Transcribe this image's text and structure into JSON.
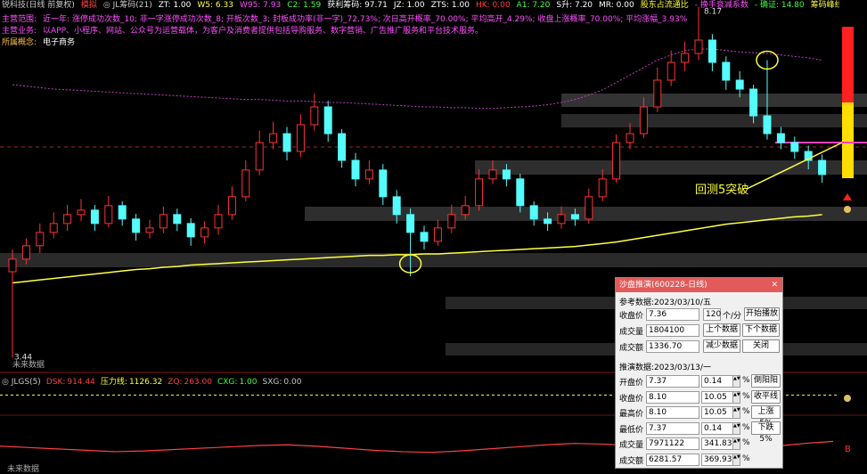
{
  "header": {
    "rows": [
      [
        {
          "text": "锐科技(日线 前复权)",
          "color": "#c8c8c8"
        },
        {
          "text": "模拟",
          "color": "#ff4040"
        },
        {
          "text": "◎ JL筹码(21)",
          "color": "#c8c8c8"
        },
        {
          "text": "ZT: 1.00",
          "color": "#ffffff"
        },
        {
          "text": "W5: 6.33",
          "color": "#ffff40"
        },
        {
          "text": "W95: 7.93",
          "color": "#ff50ff"
        },
        {
          "text": "C2: 1.59",
          "color": "#40ff40"
        },
        {
          "text": "获利筹码: 97.71",
          "color": "#ffffff"
        },
        {
          "text": "JZ: 1.00",
          "color": "#ffffff"
        },
        {
          "text": "ZTS: 1.00",
          "color": "#ffffff"
        },
        {
          "text": "HK: 0.00",
          "color": "#ff4040"
        },
        {
          "text": "A1: 7.20",
          "color": "#40ff40"
        },
        {
          "text": "S升: 7.20",
          "color": "#ffffff"
        },
        {
          "text": "MR: 0.00",
          "color": "#ffffff"
        },
        {
          "text": "股东占流通比",
          "color": "#ffff40"
        },
        {
          "text": "- 换手衰减系数",
          "color": "#ff50ff"
        },
        {
          "text": "- 确证: 14.80",
          "color": "#40ff40"
        },
        {
          "text": "筹码峰线: 7.51",
          "color": "#ffff40"
        },
        {
          "text": "平台突破: 1.00",
          "color": "#ffffff"
        }
      ],
      [
        {
          "text": "主营范围:",
          "color": "#ff50ff"
        },
        {
          "text": "近一年: 涨停成功次数_10; 非一字涨停成功次数_8; 开板次数_3; 封板成功率(非一字)_72.73%; 次日高开概率_70.00%; 平均高开_4.29%; 收盘上涨概率_70.00%; 平均涨幅_3.93%",
          "color": "#ff50ff"
        }
      ],
      [
        {
          "text": "主营业务:",
          "color": "#ff50ff"
        },
        {
          "text": "以APP、小程序、网站、公众号为运营载体，为客户及消费者提供包括导购服务、数字营销、广告推广服务和平台技术服务。",
          "color": "#ff50ff"
        }
      ],
      [
        {
          "text": "所属概念:",
          "color": "#ffc040"
        },
        {
          "text": "电子商务",
          "color": "#ffffff"
        }
      ]
    ]
  },
  "chart": {
    "type": "candlestick",
    "ylim": [
      3.4,
      8.2
    ],
    "up_color": "#ff3232",
    "down_color": "#54fcfc",
    "candles": [
      [
        4.6,
        4.9,
        3.44,
        4.77
      ],
      [
        4.77,
        5.05,
        4.7,
        4.95
      ],
      [
        4.95,
        5.25,
        4.85,
        5.13
      ],
      [
        5.13,
        5.4,
        5.05,
        5.25
      ],
      [
        5.25,
        5.5,
        5.15,
        5.37
      ],
      [
        5.37,
        5.58,
        5.28,
        5.43
      ],
      [
        5.43,
        5.5,
        5.15,
        5.25
      ],
      [
        5.25,
        5.62,
        5.2,
        5.49
      ],
      [
        5.49,
        5.55,
        5.22,
        5.31
      ],
      [
        5.31,
        5.38,
        5.02,
        5.13
      ],
      [
        5.13,
        5.3,
        5.05,
        5.19
      ],
      [
        5.19,
        5.48,
        5.12,
        5.37
      ],
      [
        5.37,
        5.45,
        5.15,
        5.25
      ],
      [
        5.25,
        5.32,
        4.95,
        5.07
      ],
      [
        5.07,
        5.28,
        4.98,
        5.19
      ],
      [
        5.19,
        5.5,
        5.1,
        5.37
      ],
      [
        5.37,
        5.75,
        5.3,
        5.61
      ],
      [
        5.61,
        6.1,
        5.55,
        5.97
      ],
      [
        5.97,
        6.5,
        5.9,
        6.34
      ],
      [
        6.34,
        6.62,
        6.25,
        6.46
      ],
      [
        6.46,
        6.55,
        6.1,
        6.22
      ],
      [
        6.22,
        6.72,
        6.15,
        6.58
      ],
      [
        6.58,
        7.0,
        6.5,
        6.82
      ],
      [
        6.82,
        6.9,
        6.35,
        6.46
      ],
      [
        6.46,
        6.52,
        6.0,
        6.1
      ],
      [
        6.1,
        6.2,
        5.75,
        5.85
      ],
      [
        5.85,
        6.1,
        5.78,
        5.97
      ],
      [
        5.97,
        6.05,
        5.5,
        5.61
      ],
      [
        5.61,
        5.7,
        5.25,
        5.37
      ],
      [
        5.37,
        5.45,
        4.54,
        5.13
      ],
      [
        5.13,
        5.22,
        4.9,
        5.01
      ],
      [
        5.01,
        5.3,
        4.95,
        5.19
      ],
      [
        5.19,
        5.5,
        5.12,
        5.37
      ],
      [
        5.37,
        5.62,
        5.3,
        5.49
      ],
      [
        5.49,
        5.98,
        5.42,
        5.85
      ],
      [
        5.85,
        6.1,
        5.78,
        5.97
      ],
      [
        5.97,
        6.05,
        5.75,
        5.85
      ],
      [
        5.85,
        5.92,
        5.4,
        5.49
      ],
      [
        5.49,
        5.55,
        5.22,
        5.31
      ],
      [
        5.31,
        5.4,
        5.15,
        5.25
      ],
      [
        5.25,
        5.48,
        5.18,
        5.37
      ],
      [
        5.37,
        5.45,
        5.22,
        5.31
      ],
      [
        5.31,
        5.72,
        5.25,
        5.61
      ],
      [
        5.61,
        5.98,
        5.55,
        5.85
      ],
      [
        5.85,
        6.45,
        5.8,
        6.34
      ],
      [
        6.34,
        6.6,
        6.25,
        6.46
      ],
      [
        6.46,
        6.95,
        6.4,
        6.82
      ],
      [
        6.82,
        7.35,
        6.75,
        7.18
      ],
      [
        7.18,
        7.58,
        7.1,
        7.42
      ],
      [
        7.42,
        7.7,
        7.3,
        7.54
      ],
      [
        7.54,
        8.17,
        7.45,
        7.72
      ],
      [
        7.72,
        7.8,
        7.3,
        7.42
      ],
      [
        7.42,
        7.5,
        7.05,
        7.18
      ],
      [
        7.18,
        7.3,
        6.95,
        7.06
      ],
      [
        7.06,
        7.12,
        6.6,
        6.7
      ],
      [
        6.7,
        7.45,
        6.38,
        6.46
      ],
      [
        6.46,
        6.55,
        6.25,
        6.34
      ],
      [
        6.34,
        6.42,
        6.12,
        6.22
      ],
      [
        6.22,
        6.3,
        5.98,
        6.1
      ],
      [
        6.1,
        6.18,
        5.8,
        5.91
      ]
    ],
    "lines": [
      {
        "color": "#ffff40",
        "dashed": false,
        "values": [
          4.45,
          4.47,
          4.49,
          4.51,
          4.53,
          4.55,
          4.57,
          4.59,
          4.61,
          4.63,
          4.64,
          4.66,
          4.67,
          4.69,
          4.7,
          4.71,
          4.72,
          4.73,
          4.74,
          4.75,
          4.76,
          4.77,
          4.78,
          4.79,
          4.8,
          4.81,
          4.82,
          4.82,
          4.83,
          4.83,
          4.84,
          4.84,
          4.85,
          4.86,
          4.87,
          4.88,
          4.89,
          4.9,
          4.91,
          4.92,
          4.93,
          4.94,
          4.96,
          4.98,
          5.0,
          5.03,
          5.06,
          5.09,
          5.12,
          5.15,
          5.18,
          5.21,
          5.24,
          5.26,
          5.28,
          5.3,
          5.32,
          5.34,
          5.35,
          5.37
        ]
      },
      {
        "color": "#c040c0",
        "dashed": true,
        "values": [
          7.12,
          7.1,
          7.08,
          7.06,
          7.05,
          7.04,
          7.03,
          7.02,
          7.01,
          7.0,
          6.99,
          6.98,
          6.97,
          6.96,
          6.95,
          6.94,
          6.93,
          6.92,
          6.92,
          6.91,
          6.9,
          6.9,
          6.89,
          6.88,
          6.88,
          6.87,
          6.86,
          6.85,
          6.84,
          6.83,
          6.82,
          6.82,
          6.81,
          6.81,
          6.8,
          6.8,
          6.81,
          6.82,
          6.83,
          6.85,
          6.88,
          6.92,
          6.98,
          7.05,
          7.15,
          7.25,
          7.35,
          7.45,
          7.52,
          7.58,
          7.6,
          7.6,
          7.58,
          7.56,
          7.55,
          7.54,
          7.52,
          7.5,
          7.48,
          7.45
        ]
      }
    ],
    "annotation": "回测5突破",
    "future_note": "未来数据"
  },
  "lower": {
    "title": "◎ JLGS(5)",
    "ylim": [
      0,
      1300
    ],
    "items": [
      {
        "label": "DSK:",
        "value": 914.44,
        "color": "#ff4040"
      },
      {
        "label": "压力线:",
        "value": 1126.32,
        "color": "#ffff40"
      },
      {
        "label": "ZQ:",
        "value": "263.00",
        "color": "#ff4040"
      },
      {
        "label": "CXG:",
        "value": "1.00",
        "color": "#40ff40"
      },
      {
        "label": "SXG:",
        "value": "0.00",
        "color": "#c8c8c8"
      }
    ],
    "dsk_series": [
      380,
      360,
      340,
      320,
      300,
      310,
      330,
      350,
      370,
      390,
      400,
      380,
      350,
      320,
      300,
      290,
      310,
      340,
      370,
      400,
      420,
      410,
      390,
      360,
      340,
      330,
      350,
      380,
      420,
      450
    ],
    "future_note": "未来数据"
  },
  "dialog": {
    "title": "沙盘推演(600228-日线)",
    "ref_label": "参考数据:2023/03/10/五",
    "ref_rows": [
      {
        "label": "收盘价",
        "value": "7.36"
      },
      {
        "label": "成交量",
        "value": "1804100"
      },
      {
        "label": "成交额",
        "value": "1336.70"
      }
    ],
    "speed": "120",
    "speed_unit": "个/分",
    "buttons": [
      "开始播放",
      "上个数据",
      "下个数据",
      "减少数据",
      "关闭"
    ],
    "sim_label": "推演数据:2023/03/13/一",
    "pct_unit": "%",
    "sim_rows": [
      {
        "label": "开盘价",
        "value": "7.37",
        "pct": "0.14",
        "button": "倒阳阳"
      },
      {
        "label": "收盘价",
        "value": "8.10",
        "pct": "10.05",
        "button": "收平线"
      },
      {
        "label": "最高价",
        "value": "8.10",
        "pct": "10.05",
        "button": "上涨5%"
      },
      {
        "label": "最低价",
        "value": "7.37",
        "pct": "0.14",
        "button": "下跌5%"
      },
      {
        "label": "成交量",
        "value": "7971122",
        "pct": "341.83"
      },
      {
        "label": "成交额",
        "value": "6281.57",
        "pct": "369.93"
      }
    ]
  }
}
